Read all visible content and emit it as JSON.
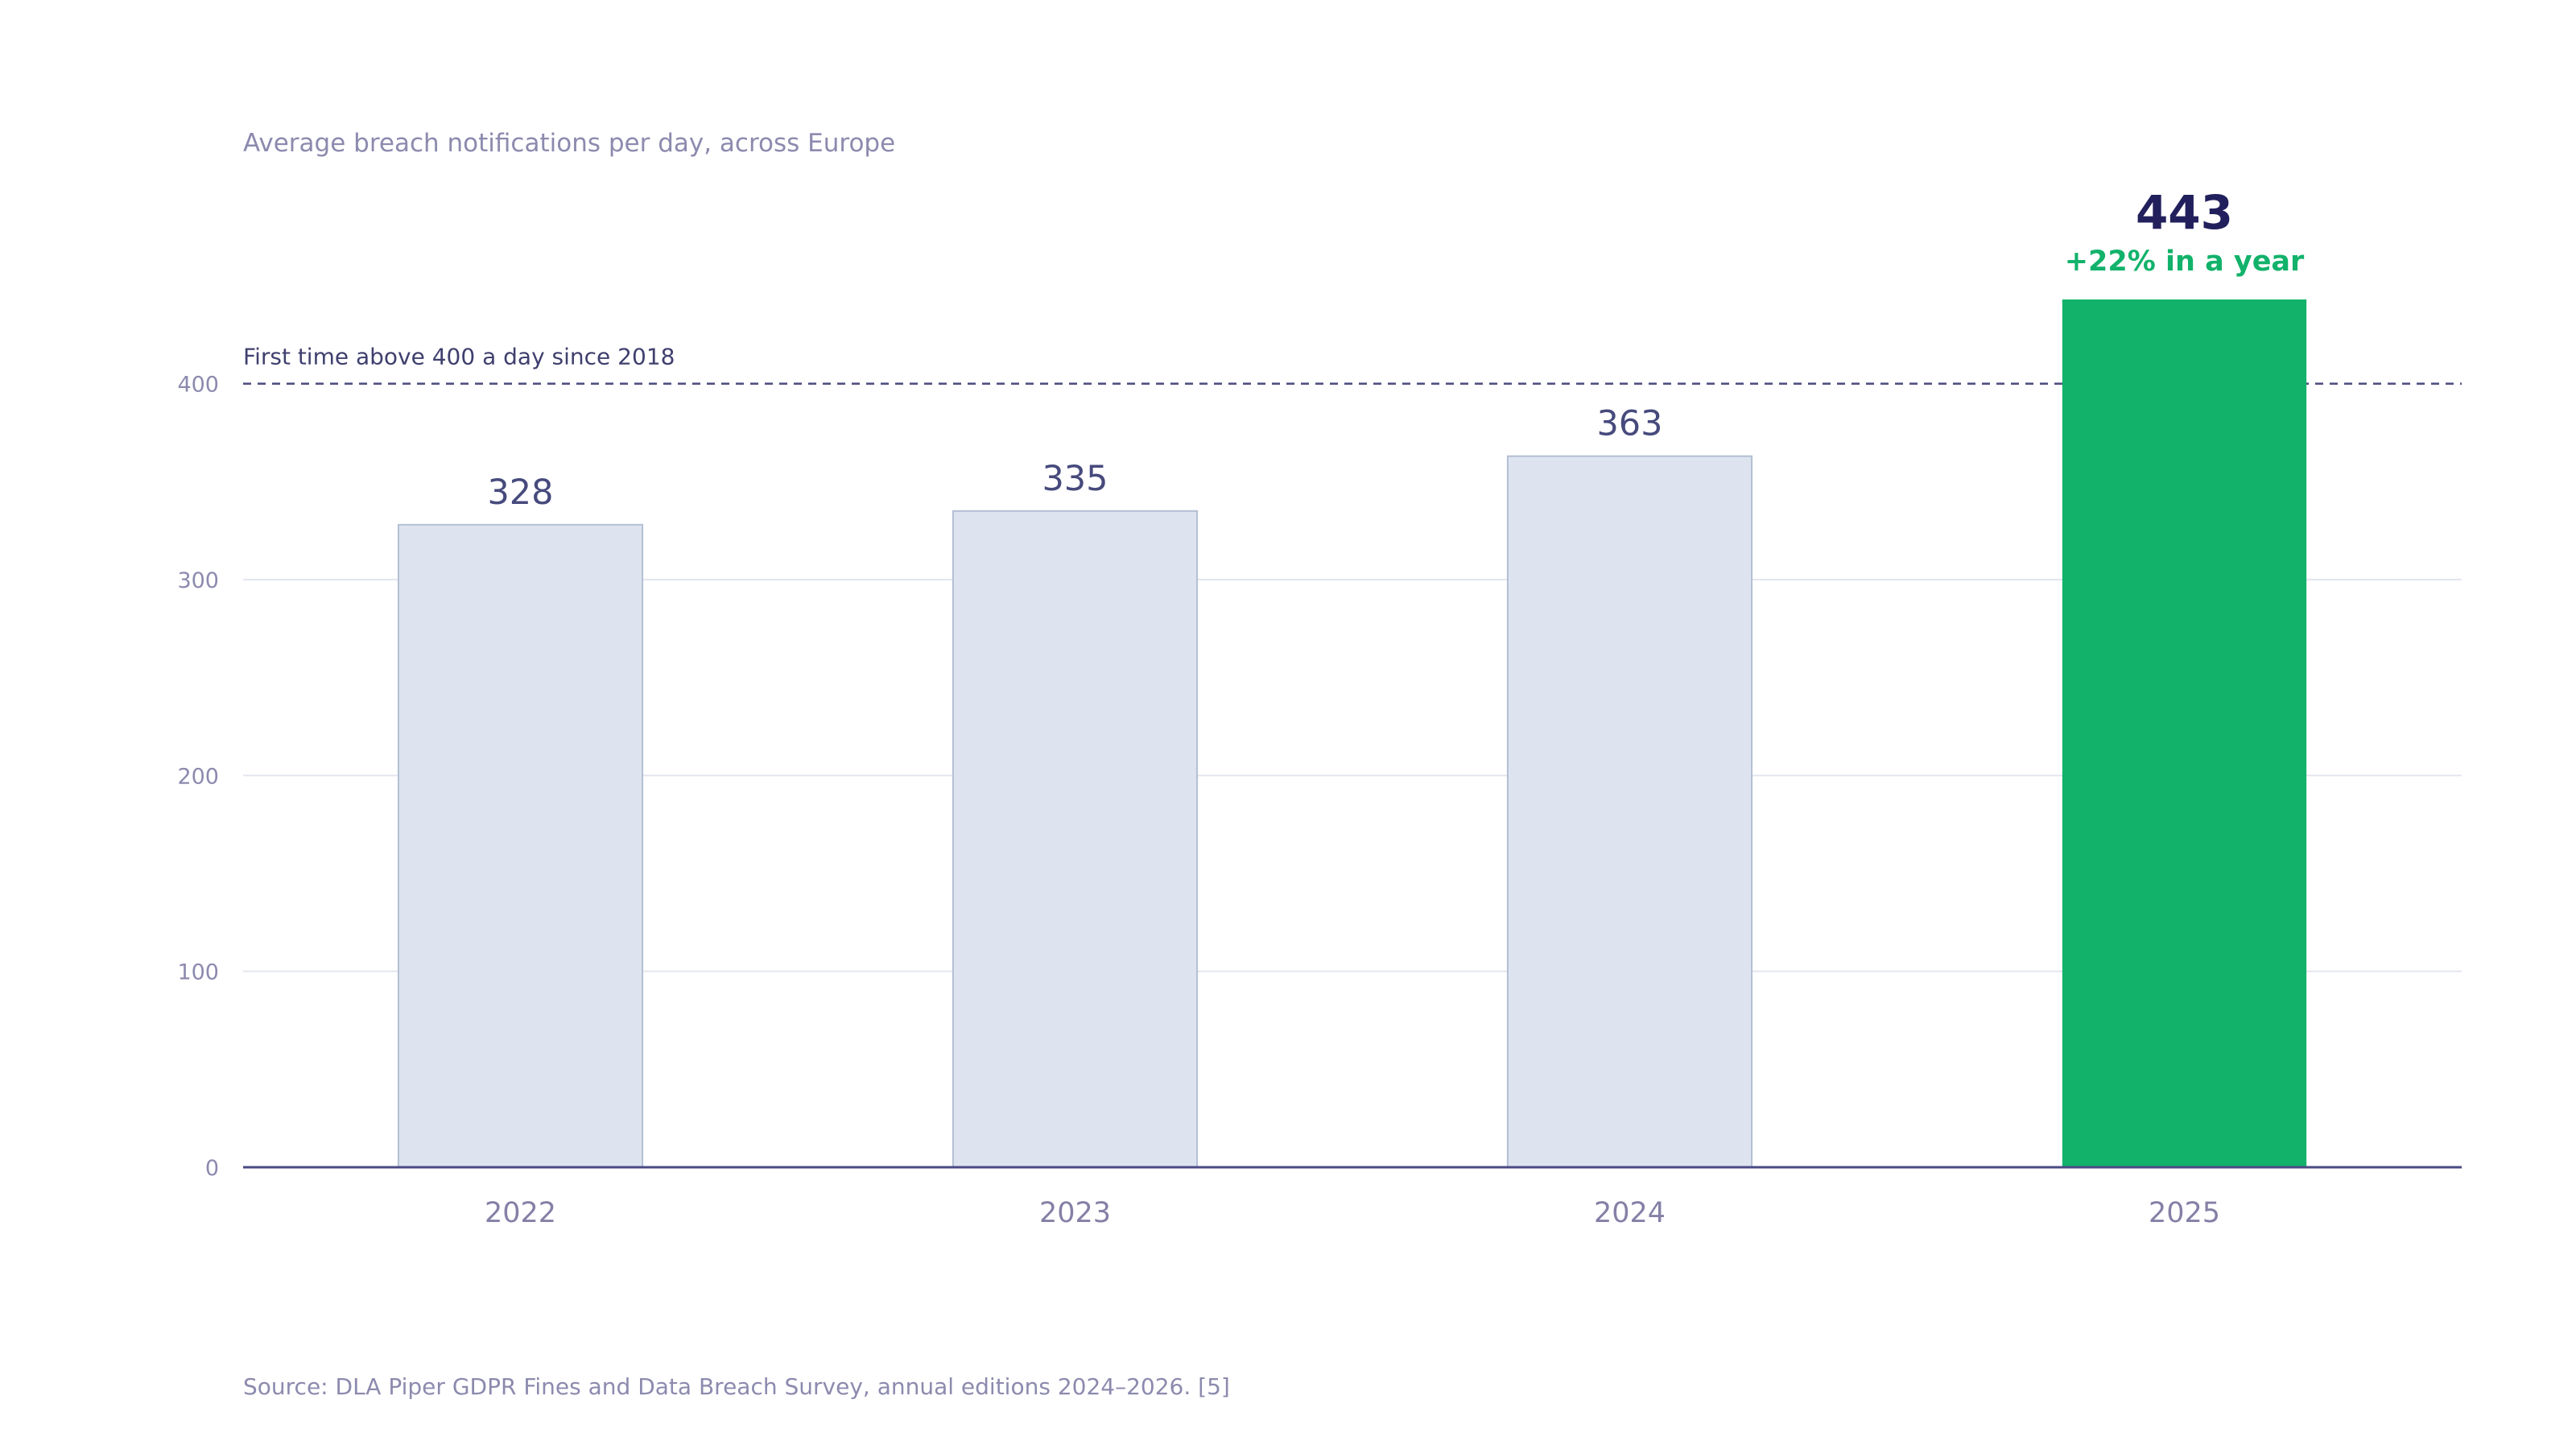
{
  "chart_data": {
    "type": "bar",
    "subtitle": "Average breach notifications per day, across Europe",
    "categories": [
      "2022",
      "2023",
      "2024",
      "2025"
    ],
    "values": [
      328,
      335,
      363,
      443
    ],
    "value_labels": [
      "328",
      "335",
      "363",
      "443"
    ],
    "ylim": [
      0,
      443
    ],
    "yticks": [
      0,
      100,
      200,
      300,
      400
    ],
    "ytick_labels": [
      "0",
      "100",
      "200",
      "300",
      "400"
    ],
    "grid": true,
    "highlight": {
      "category": "2025",
      "value_label": "443",
      "change_label": "+22% in a year",
      "color": "#12b26b"
    },
    "reference_line": {
      "value": 400,
      "label": "First time above 400 a day since 2018",
      "style": "dashed",
      "color": "#4a4a7e"
    },
    "colors": {
      "bar_fill": "#dde4ef",
      "bar_stroke": "#b3bfd3",
      "highlight_fill": "#12b26b",
      "axis": "#4a4a85",
      "grid": "#e3e6ee"
    }
  },
  "source": "Source: DLA Piper GDPR Fines and Data Breach Survey, annual editions 2024–2026. [5]"
}
